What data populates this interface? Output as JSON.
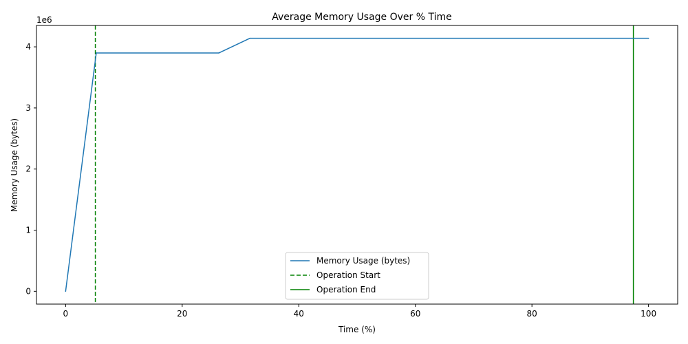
{
  "chart_data": {
    "type": "line",
    "title": "Average Memory Usage Over % Time",
    "xlabel": "Time (%)",
    "ylabel": "Memory Usage (bytes)",
    "y_offset_text": "1e6",
    "xlim": [
      -5,
      105
    ],
    "ylim": [
      -210000,
      4350000
    ],
    "x_ticks": [
      0,
      20,
      40,
      60,
      80,
      100
    ],
    "y_ticks": [
      0,
      1000000,
      2000000,
      3000000,
      4000000
    ],
    "y_tick_labels": [
      "0",
      "1",
      "2",
      "3",
      "4"
    ],
    "grid": false,
    "legend_position": "lower center",
    "series": [
      {
        "name": "Memory Usage (bytes)",
        "color": "#1f77b4",
        "style": "solid",
        "x": [
          0,
          5.26,
          26.3,
          31.6,
          100
        ],
        "y": [
          0,
          3900000,
          3900000,
          4140000,
          4140000
        ]
      }
    ],
    "vlines": [
      {
        "name": "Operation Start",
        "x": 5.1,
        "color": "#008000",
        "style": "dashed"
      },
      {
        "name": "Operation End",
        "x": 97.4,
        "color": "#008000",
        "style": "solid"
      }
    ]
  }
}
